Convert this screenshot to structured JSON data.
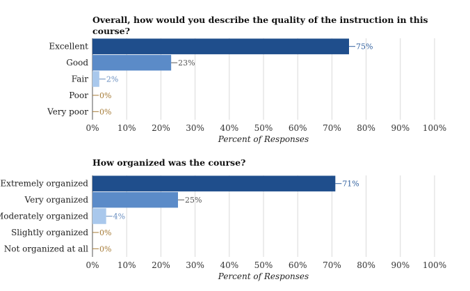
{
  "chart_data": [
    {
      "type": "bar",
      "orientation": "horizontal",
      "title_lines": [
        "Overall, how would you describe the quality of the instruction in this",
        "course?"
      ],
      "categories": [
        "Excellent",
        "Good",
        "Fair",
        "Poor",
        "Very poor"
      ],
      "values": [
        75,
        23,
        2,
        0,
        0
      ],
      "value_labels": [
        "75%",
        "23%",
        "2%",
        "0%",
        "0%"
      ],
      "xlabel": "Percent of Responses",
      "xlim": [
        0,
        100
      ],
      "ticks": [
        "0%",
        "10%",
        "20%",
        "30%",
        "40%",
        "50%",
        "60%",
        "70%",
        "80%",
        "90%",
        "100%"
      ],
      "grid": true,
      "bar_colors": [
        "#1f4e8c",
        "#5b8bc8",
        "#a9c8ec",
        "#c9b58a",
        "#b9a070"
      ],
      "label_colors": [
        "#2f5f9e",
        "#555555",
        "#6a8fc0",
        "#a57a35",
        "#a57a35"
      ]
    },
    {
      "type": "bar",
      "orientation": "horizontal",
      "title_lines": [
        "How organized was the course?"
      ],
      "categories": [
        "Extremely organized",
        "Very organized",
        "Moderately organized",
        "Slightly organized",
        "Not organized at all"
      ],
      "values": [
        71,
        25,
        4,
        0,
        0
      ],
      "value_labels": [
        "71%",
        "25%",
        "4%",
        "0%",
        "0%"
      ],
      "xlabel": "Percent of Responses",
      "xlim": [
        0,
        100
      ],
      "ticks": [
        "0%",
        "10%",
        "20%",
        "30%",
        "40%",
        "50%",
        "60%",
        "70%",
        "80%",
        "90%",
        "100%"
      ],
      "grid": true,
      "bar_colors": [
        "#1f4e8c",
        "#5b8bc8",
        "#a9c8ec",
        "#c9b58a",
        "#b9a070"
      ],
      "label_colors": [
        "#2f5f9e",
        "#555555",
        "#6a8fc0",
        "#a57a35",
        "#a57a35"
      ]
    }
  ]
}
